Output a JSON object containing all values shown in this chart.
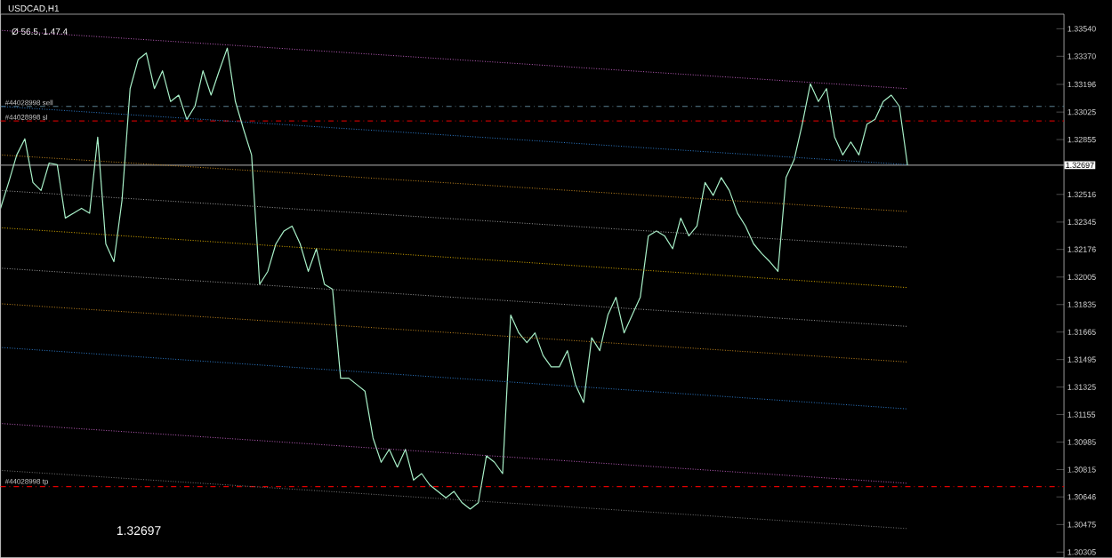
{
  "chart_data": {
    "type": "line",
    "title": "USDCAD,H1",
    "subtitle": "Ø 56.5, 1.47.4",
    "categories": [
      null,
      null,
      null,
      null,
      null,
      null,
      null,
      null,
      null,
      null,
      null,
      null,
      null,
      null,
      null,
      null,
      null,
      null,
      null,
      null,
      null,
      null,
      null,
      null,
      null,
      null,
      null,
      null,
      null,
      null,
      null,
      null,
      null,
      null,
      null,
      null,
      null,
      null,
      null,
      null,
      null,
      null,
      null,
      null,
      null,
      null,
      null,
      null,
      null,
      null,
      null,
      null,
      null,
      null,
      null,
      null,
      null,
      null,
      null,
      null,
      null,
      null,
      null,
      null,
      null,
      null,
      null,
      null,
      null,
      null,
      null,
      null,
      null,
      null,
      null,
      null,
      null,
      null,
      null,
      null,
      null,
      null,
      null,
      null,
      null,
      null,
      null,
      null,
      null,
      null,
      null,
      null,
      null,
      null,
      null,
      null,
      null,
      null,
      null,
      null,
      null,
      null,
      null,
      null,
      null,
      null,
      null,
      null,
      null,
      null,
      null,
      null,
      null
    ],
    "ylim": [
      1.3027,
      1.3363
    ],
    "tick_labels": "y",
    "grid": false,
    "yticks": [
      {
        "value": 1.3354,
        "label": "1.33540"
      },
      {
        "value": 1.3337,
        "label": "1.33370"
      },
      {
        "value": 1.33196,
        "label": "1.33196"
      },
      {
        "value": 1.33025,
        "label": "1.33025"
      },
      {
        "value": 1.32855,
        "label": "1.32855"
      },
      {
        "value": 1.32516,
        "label": "1.32516"
      },
      {
        "value": 1.32345,
        "label": "1.32345"
      },
      {
        "value": 1.32176,
        "label": "1.32176"
      },
      {
        "value": 1.32005,
        "label": "1.32005"
      },
      {
        "value": 1.31835,
        "label": "1.31835"
      },
      {
        "value": 1.31665,
        "label": "1.31665"
      },
      {
        "value": 1.31495,
        "label": "1.31495"
      },
      {
        "value": 1.31325,
        "label": "1.31325"
      },
      {
        "value": 1.31155,
        "label": "1.31155"
      },
      {
        "value": 1.30985,
        "label": "1.30985"
      },
      {
        "value": 1.30815,
        "label": "1.30815"
      },
      {
        "value": 1.30646,
        "label": "1.30646"
      },
      {
        "value": 1.30475,
        "label": "1.30475"
      },
      {
        "value": 1.30305,
        "label": "1.30305"
      }
    ],
    "series": [
      {
        "line_style": "dotted",
        "color": "#c060c0",
        "values": [
          1.3353,
          null,
          null,
          null,
          null,
          null,
          null,
          null,
          null,
          null,
          null,
          null,
          null,
          null,
          null,
          null,
          null,
          null,
          null,
          null,
          null,
          null,
          null,
          null,
          null,
          null,
          null,
          null,
          null,
          null,
          null,
          null,
          null,
          null,
          null,
          null,
          null,
          null,
          null,
          null,
          null,
          null,
          null,
          null,
          null,
          null,
          null,
          null,
          null,
          null,
          null,
          null,
          null,
          null,
          null,
          null,
          null,
          null,
          null,
          null,
          null,
          null,
          null,
          null,
          null,
          null,
          null,
          null,
          null,
          null,
          null,
          null,
          null,
          null,
          null,
          null,
          null,
          null,
          null,
          null,
          null,
          null,
          null,
          null,
          null,
          null,
          null,
          null,
          null,
          null,
          null,
          null,
          null,
          null,
          null,
          null,
          null,
          null,
          null,
          null,
          null,
          null,
          null,
          null,
          null,
          null,
          null,
          null,
          null,
          null,
          null,
          null,
          1.3317
        ]
      },
      {
        "line_style": "dotted",
        "color": "#2f7fd0",
        "values": [
          1.3306,
          null,
          null,
          null,
          null,
          null,
          null,
          null,
          null,
          null,
          null,
          null,
          null,
          null,
          null,
          null,
          null,
          null,
          null,
          null,
          null,
          null,
          null,
          null,
          null,
          null,
          null,
          null,
          null,
          null,
          null,
          null,
          null,
          null,
          null,
          null,
          null,
          null,
          null,
          null,
          null,
          null,
          null,
          null,
          null,
          null,
          null,
          null,
          null,
          null,
          null,
          null,
          null,
          null,
          null,
          null,
          null,
          null,
          null,
          null,
          null,
          null,
          null,
          null,
          null,
          null,
          null,
          null,
          null,
          null,
          null,
          null,
          null,
          null,
          null,
          null,
          null,
          null,
          null,
          null,
          null,
          null,
          null,
          null,
          null,
          null,
          null,
          null,
          null,
          null,
          null,
          null,
          null,
          null,
          null,
          null,
          null,
          null,
          null,
          null,
          null,
          null,
          null,
          null,
          null,
          null,
          null,
          null,
          null,
          null,
          null,
          null,
          1.327
        ]
      },
      {
        "line_style": "dotted",
        "color": "#c88a20",
        "values": [
          1.3276,
          null,
          null,
          null,
          null,
          null,
          null,
          null,
          null,
          null,
          null,
          null,
          null,
          null,
          null,
          null,
          null,
          null,
          null,
          null,
          null,
          null,
          null,
          null,
          null,
          null,
          null,
          null,
          null,
          null,
          null,
          null,
          null,
          null,
          null,
          null,
          null,
          null,
          null,
          null,
          null,
          null,
          null,
          null,
          null,
          null,
          null,
          null,
          null,
          null,
          null,
          null,
          null,
          null,
          null,
          null,
          null,
          null,
          null,
          null,
          null,
          null,
          null,
          null,
          null,
          null,
          null,
          null,
          null,
          null,
          null,
          null,
          null,
          null,
          null,
          null,
          null,
          null,
          null,
          null,
          null,
          null,
          null,
          null,
          null,
          null,
          null,
          null,
          null,
          null,
          null,
          null,
          null,
          null,
          null,
          null,
          null,
          null,
          null,
          null,
          null,
          null,
          null,
          null,
          null,
          null,
          null,
          null,
          null,
          null,
          null,
          null,
          1.3241
        ]
      },
      {
        "line_style": "dotted",
        "color": "#a0a0a0",
        "values": [
          1.3254,
          null,
          null,
          null,
          null,
          null,
          null,
          null,
          null,
          null,
          null,
          null,
          null,
          null,
          null,
          null,
          null,
          null,
          null,
          null,
          null,
          null,
          null,
          null,
          null,
          null,
          null,
          null,
          null,
          null,
          null,
          null,
          null,
          null,
          null,
          null,
          null,
          null,
          null,
          null,
          null,
          null,
          null,
          null,
          null,
          null,
          null,
          null,
          null,
          null,
          null,
          null,
          null,
          null,
          null,
          null,
          null,
          null,
          null,
          null,
          null,
          null,
          null,
          null,
          null,
          null,
          null,
          null,
          null,
          null,
          null,
          null,
          null,
          null,
          null,
          null,
          null,
          null,
          null,
          null,
          null,
          null,
          null,
          null,
          null,
          null,
          null,
          null,
          null,
          null,
          null,
          null,
          null,
          null,
          null,
          null,
          null,
          null,
          null,
          null,
          null,
          null,
          null,
          null,
          null,
          null,
          null,
          null,
          null,
          null,
          null,
          null,
          1.3219
        ]
      },
      {
        "line_style": "dotted",
        "color": "#e0b000",
        "values": [
          1.3231,
          null,
          null,
          null,
          null,
          null,
          null,
          null,
          null,
          null,
          null,
          null,
          null,
          null,
          null,
          null,
          null,
          null,
          null,
          null,
          null,
          null,
          null,
          null,
          null,
          null,
          null,
          null,
          null,
          null,
          null,
          null,
          null,
          null,
          null,
          null,
          null,
          null,
          null,
          null,
          null,
          null,
          null,
          null,
          null,
          null,
          null,
          null,
          null,
          null,
          null,
          null,
          null,
          null,
          null,
          null,
          null,
          null,
          null,
          null,
          null,
          null,
          null,
          null,
          null,
          null,
          null,
          null,
          null,
          null,
          null,
          null,
          null,
          null,
          null,
          null,
          null,
          null,
          null,
          null,
          null,
          null,
          null,
          null,
          null,
          null,
          null,
          null,
          null,
          null,
          null,
          null,
          null,
          null,
          null,
          null,
          null,
          null,
          null,
          null,
          null,
          null,
          null,
          null,
          null,
          null,
          null,
          null,
          null,
          null,
          null,
          null,
          1.3194
        ]
      },
      {
        "line_style": "dotted",
        "color": "#a0a0a0",
        "values": [
          1.3206,
          null,
          null,
          null,
          null,
          null,
          null,
          null,
          null,
          null,
          null,
          null,
          null,
          null,
          null,
          null,
          null,
          null,
          null,
          null,
          null,
          null,
          null,
          null,
          null,
          null,
          null,
          null,
          null,
          null,
          null,
          null,
          null,
          null,
          null,
          null,
          null,
          null,
          null,
          null,
          null,
          null,
          null,
          null,
          null,
          null,
          null,
          null,
          null,
          null,
          null,
          null,
          null,
          null,
          null,
          null,
          null,
          null,
          null,
          null,
          null,
          null,
          null,
          null,
          null,
          null,
          null,
          null,
          null,
          null,
          null,
          null,
          null,
          null,
          null,
          null,
          null,
          null,
          null,
          null,
          null,
          null,
          null,
          null,
          null,
          null,
          null,
          null,
          null,
          null,
          null,
          null,
          null,
          null,
          null,
          null,
          null,
          null,
          null,
          null,
          null,
          null,
          null,
          null,
          null,
          null,
          null,
          null,
          null,
          null,
          null,
          null,
          1.317
        ]
      },
      {
        "line_style": "dotted",
        "color": "#c88a20",
        "values": [
          1.3184,
          null,
          null,
          null,
          null,
          null,
          null,
          null,
          null,
          null,
          null,
          null,
          null,
          null,
          null,
          null,
          null,
          null,
          null,
          null,
          null,
          null,
          null,
          null,
          null,
          null,
          null,
          null,
          null,
          null,
          null,
          null,
          null,
          null,
          null,
          null,
          null,
          null,
          null,
          null,
          null,
          null,
          null,
          null,
          null,
          null,
          null,
          null,
          null,
          null,
          null,
          null,
          null,
          null,
          null,
          null,
          null,
          null,
          null,
          null,
          null,
          null,
          null,
          null,
          null,
          null,
          null,
          null,
          null,
          null,
          null,
          null,
          null,
          null,
          null,
          null,
          null,
          null,
          null,
          null,
          null,
          null,
          null,
          null,
          null,
          null,
          null,
          null,
          null,
          null,
          null,
          null,
          null,
          null,
          null,
          null,
          null,
          null,
          null,
          null,
          null,
          null,
          null,
          null,
          null,
          null,
          null,
          null,
          null,
          null,
          null,
          null,
          1.3148
        ]
      },
      {
        "line_style": "dotted",
        "color": "#2f7fd0",
        "values": [
          1.3157,
          null,
          null,
          null,
          null,
          null,
          null,
          null,
          null,
          null,
          null,
          null,
          null,
          null,
          null,
          null,
          null,
          null,
          null,
          null,
          null,
          null,
          null,
          null,
          null,
          null,
          null,
          null,
          null,
          null,
          null,
          null,
          null,
          null,
          null,
          null,
          null,
          null,
          null,
          null,
          null,
          null,
          null,
          null,
          null,
          null,
          null,
          null,
          null,
          null,
          null,
          null,
          null,
          null,
          null,
          null,
          null,
          null,
          null,
          null,
          null,
          null,
          null,
          null,
          null,
          null,
          null,
          null,
          null,
          null,
          null,
          null,
          null,
          null,
          null,
          null,
          null,
          null,
          null,
          null,
          null,
          null,
          null,
          null,
          null,
          null,
          null,
          null,
          null,
          null,
          null,
          null,
          null,
          null,
          null,
          null,
          null,
          null,
          null,
          null,
          null,
          null,
          null,
          null,
          null,
          null,
          null,
          null,
          null,
          null,
          null,
          null,
          1.3119
        ]
      },
      {
        "line_style": "dotted",
        "color": "#c060c0",
        "values": [
          1.311,
          null,
          null,
          null,
          null,
          null,
          null,
          null,
          null,
          null,
          null,
          null,
          null,
          null,
          null,
          null,
          null,
          null,
          null,
          null,
          null,
          null,
          null,
          null,
          null,
          null,
          null,
          null,
          null,
          null,
          null,
          null,
          null,
          null,
          null,
          null,
          null,
          null,
          null,
          null,
          null,
          null,
          null,
          null,
          null,
          null,
          null,
          null,
          null,
          null,
          null,
          null,
          null,
          null,
          null,
          null,
          null,
          null,
          null,
          null,
          null,
          null,
          null,
          null,
          null,
          null,
          null,
          null,
          null,
          null,
          null,
          null,
          null,
          null,
          null,
          null,
          null,
          null,
          null,
          null,
          null,
          null,
          null,
          null,
          null,
          null,
          null,
          null,
          null,
          null,
          null,
          null,
          null,
          null,
          null,
          null,
          null,
          null,
          null,
          null,
          null,
          null,
          null,
          null,
          null,
          null,
          null,
          null,
          null,
          null,
          null,
          null,
          1.3073
        ]
      },
      {
        "line_style": "dotted",
        "color": "#7a7a7a",
        "values": [
          1.3081,
          null,
          null,
          null,
          null,
          null,
          null,
          null,
          null,
          null,
          null,
          null,
          null,
          null,
          null,
          null,
          null,
          null,
          null,
          null,
          null,
          null,
          null,
          null,
          null,
          null,
          null,
          null,
          null,
          null,
          null,
          null,
          null,
          null,
          null,
          null,
          null,
          null,
          null,
          null,
          null,
          null,
          null,
          null,
          null,
          null,
          null,
          null,
          null,
          null,
          null,
          null,
          null,
          null,
          null,
          null,
          null,
          null,
          null,
          null,
          null,
          null,
          null,
          null,
          null,
          null,
          null,
          null,
          null,
          null,
          null,
          null,
          null,
          null,
          null,
          null,
          null,
          null,
          null,
          null,
          null,
          null,
          null,
          null,
          null,
          null,
          null,
          null,
          null,
          null,
          null,
          null,
          null,
          null,
          null,
          null,
          null,
          null,
          null,
          null,
          null,
          null,
          null,
          null,
          null,
          null,
          null,
          null,
          null,
          null,
          null,
          null,
          1.3045
        ]
      },
      {
        "line_style": "solid",
        "color": "#a8f0c8",
        "values": [
          1.3243,
          1.3259,
          1.3276,
          1.3286,
          1.3259,
          1.3254,
          1.3271,
          1.327,
          1.3237,
          1.324,
          1.3243,
          1.324,
          1.3287,
          1.3221,
          1.321,
          1.3248,
          1.3317,
          1.3335,
          1.3339,
          1.3317,
          1.3328,
          1.3309,
          1.3313,
          1.3298,
          1.3306,
          1.3328,
          1.3313,
          1.3328,
          1.3342,
          1.3309,
          1.3292,
          1.3276,
          1.3196,
          1.3204,
          1.3221,
          1.3229,
          1.3232,
          1.3221,
          1.3204,
          1.3218,
          1.3196,
          1.3193,
          1.3138,
          1.3138,
          1.3134,
          1.313,
          1.3101,
          1.3086,
          1.3094,
          1.3083,
          1.3094,
          1.3075,
          1.3079,
          1.3072,
          1.3068,
          1.3064,
          1.3068,
          1.3061,
          1.3057,
          1.3061,
          1.309,
          1.3086,
          1.3079,
          1.3177,
          1.3166,
          1.316,
          1.3166,
          1.3152,
          1.3145,
          1.3145,
          1.3155,
          1.3134,
          1.3123,
          1.3163,
          1.3155,
          1.3177,
          1.3188,
          1.3166,
          1.3177,
          1.3188,
          1.3226,
          1.3229,
          1.3226,
          1.3218,
          1.3237,
          1.3226,
          1.3232,
          1.3259,
          1.3251,
          1.3262,
          1.3254,
          1.324,
          1.3232,
          1.3221,
          1.3215,
          1.321,
          1.3204,
          1.3262,
          1.3273,
          1.3295,
          1.332,
          1.3309,
          1.3317,
          1.3287,
          1.3276,
          1.3284,
          1.3276,
          1.3295,
          1.3298,
          1.3309,
          1.3313,
          1.3306,
          1.32697
        ]
      }
    ],
    "ref_lines": [
      {
        "axis": "y",
        "value": 1.3306,
        "label": "#44028998 sell",
        "color": "#5a8090",
        "line_style": "dashed"
      },
      {
        "axis": "y",
        "value": 1.3297,
        "label": "#44028998 sl",
        "color": "#c00000",
        "line_style": "dashed"
      },
      {
        "axis": "y",
        "value": 1.3071,
        "label": "#44028998 tp",
        "color": "#e00000",
        "line_style": "dashed"
      },
      {
        "axis": "y",
        "value": 1.32697,
        "label": "1.32697",
        "color": "#909090",
        "line_style": "solid"
      }
    ],
    "annotations": [
      "1.32697"
    ]
  }
}
